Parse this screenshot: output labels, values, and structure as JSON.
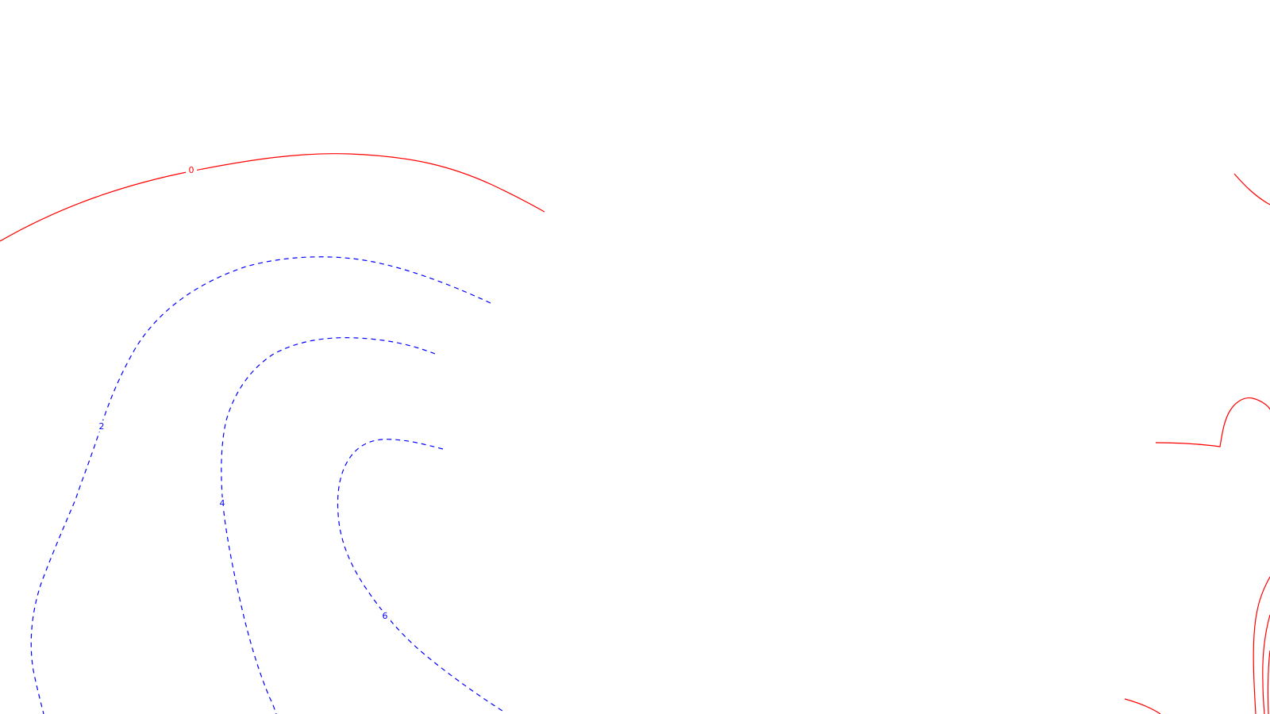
{
  "map": {
    "colors": {
      "background": "#ffffff",
      "positive_contour": "#ff0000",
      "negative_contour": "#0000ff"
    },
    "contour_labels": {
      "zero": "0",
      "two": "2",
      "four": "4",
      "six": "6"
    }
  }
}
